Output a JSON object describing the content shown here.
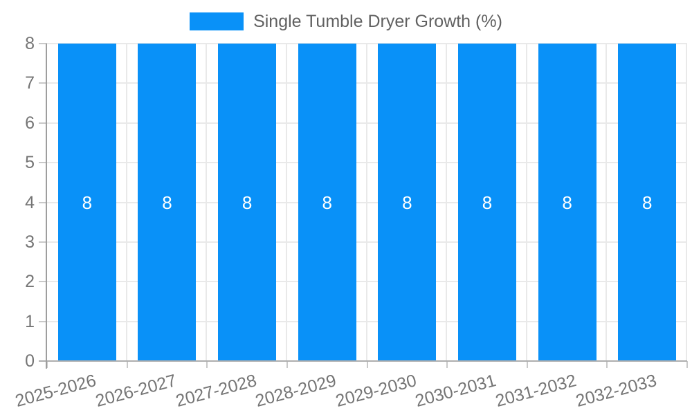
{
  "legend": {
    "label": "Single Tumble Dryer Growth (%)",
    "swatch_color": "#0991f8"
  },
  "chart_data": {
    "type": "bar",
    "title": "Single Tumble Dryer Growth (%)",
    "categories": [
      "2025-2026",
      "2026-2027",
      "2027-2028",
      "2028-2029",
      "2029-2030",
      "2030-2031",
      "2031-2032",
      "2032-2033"
    ],
    "series": [
      {
        "name": "Single Tumble Dryer Growth (%)",
        "color": "#0991f8",
        "values": [
          8,
          8,
          8,
          8,
          8,
          8,
          8,
          8
        ]
      }
    ],
    "data_labels": [
      "8",
      "8",
      "8",
      "8",
      "8",
      "8",
      "8",
      "8"
    ],
    "xlabel": "",
    "ylabel": "",
    "ylim": [
      0,
      8
    ],
    "yticks": [
      0,
      1,
      2,
      3,
      4,
      5,
      6,
      7,
      8
    ],
    "grid": "both",
    "legend_position": "top",
    "x_tick_rotation_deg": -15
  },
  "colors": {
    "bar": "#0991f8",
    "grid": "#e9e9e9",
    "axis_line": "#9e9e9e",
    "baseline": "#aeaeae",
    "tick": "#c9c9c9",
    "axis_text": "#757575",
    "legend_text": "#616161",
    "data_label": "#ffffff",
    "background": "#ffffff"
  }
}
